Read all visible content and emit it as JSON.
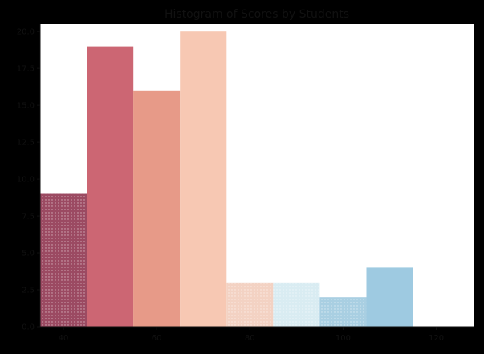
{
  "chart_data": {
    "type": "bar",
    "title": "Histogram of Scores by Students",
    "xlabel": "",
    "ylabel": "",
    "x_ticks": [
      40,
      60,
      80,
      100,
      120
    ],
    "y_ticks": [
      "0.0",
      "2.5",
      "5.0",
      "7.5",
      "10.0",
      "12.5",
      "15.0",
      "17.5",
      "20.0"
    ],
    "ylim": [
      0,
      20.5
    ],
    "xlim": [
      35,
      128
    ],
    "bins": [
      {
        "start": 35,
        "end": 45,
        "count": 9,
        "color": "#9b4a62",
        "pattern": "dots"
      },
      {
        "start": 45,
        "end": 55,
        "count": 19,
        "color": "#cc6673",
        "pattern": "solid"
      },
      {
        "start": 55,
        "end": 65,
        "count": 16,
        "color": "#e79a88",
        "pattern": "solid"
      },
      {
        "start": 65,
        "end": 75,
        "count": 20,
        "color": "#f7c8b3",
        "pattern": "solid"
      },
      {
        "start": 75,
        "end": 85,
        "count": 3,
        "color": "#f3d2c3",
        "pattern": "dots"
      },
      {
        "start": 85,
        "end": 95,
        "count": 3,
        "color": "#d9ecf2",
        "pattern": "dots"
      },
      {
        "start": 95,
        "end": 105,
        "count": 2,
        "color": "#a9cfe2",
        "pattern": "dots"
      },
      {
        "start": 105,
        "end": 115,
        "count": 4,
        "color": "#9ecae1",
        "pattern": "solid"
      }
    ],
    "grid": false,
    "legend": "none"
  }
}
